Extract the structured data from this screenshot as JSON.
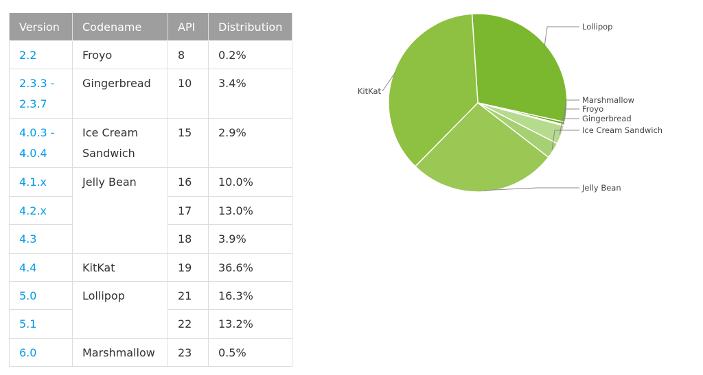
{
  "table": {
    "headers": [
      "Version",
      "Codename",
      "API",
      "Distribution"
    ],
    "rows": [
      {
        "version": "2.2",
        "codename": "Froyo",
        "api": "8",
        "distribution": "0.2%"
      },
      {
        "version": "2.3.3 -\n2.3.7",
        "codename": "Gingerbread",
        "api": "10",
        "distribution": "3.4%"
      },
      {
        "version": "4.0.3 -\n4.0.4",
        "codename": "Ice Cream\nSandwich",
        "api": "15",
        "distribution": "2.9%"
      },
      {
        "version": "4.1.x",
        "codename": "Jelly Bean",
        "api": "16",
        "distribution": "10.0%"
      },
      {
        "version": "4.2.x",
        "codename": "",
        "api": "17",
        "distribution": "13.0%"
      },
      {
        "version": "4.3",
        "codename": "",
        "api": "18",
        "distribution": "3.9%"
      },
      {
        "version": "4.4",
        "codename": "KitKat",
        "api": "19",
        "distribution": "36.6%"
      },
      {
        "version": "5.0",
        "codename": "Lollipop",
        "api": "21",
        "distribution": "16.3%"
      },
      {
        "version": "5.1",
        "codename": "",
        "api": "22",
        "distribution": "13.2%"
      },
      {
        "version": "6.0",
        "codename": "Marshmallow",
        "api": "23",
        "distribution": "0.5%"
      }
    ]
  },
  "colors": {
    "header_bg": "#9e9e9e",
    "version_link": "#039be5",
    "slice_light": "#b6db8f",
    "slice_mid": "#9bc755",
    "slice_kitkat": "#8ec042",
    "slice_lollipop": "#7cb82f",
    "slice_marshmallow": "#6fab22"
  },
  "chart_data": {
    "type": "pie",
    "slices": [
      {
        "label": "Lollipop",
        "value": 29.5,
        "color": "#7cb82f"
      },
      {
        "label": "Marshmallow",
        "value": 0.5,
        "color": "#6fab22"
      },
      {
        "label": "Froyo",
        "value": 0.2,
        "color": "#b6db8f"
      },
      {
        "label": "Gingerbread",
        "value": 3.4,
        "color": "#b6db8f"
      },
      {
        "label": "Ice Cream Sandwich",
        "value": 2.9,
        "color": "#a6d072"
      },
      {
        "label": "Jelly Bean",
        "value": 26.9,
        "color": "#9bc755"
      },
      {
        "label": "KitKat",
        "value": 36.6,
        "color": "#8ec042"
      }
    ],
    "start": "12 o'clock, clockwise from Lollipop"
  }
}
